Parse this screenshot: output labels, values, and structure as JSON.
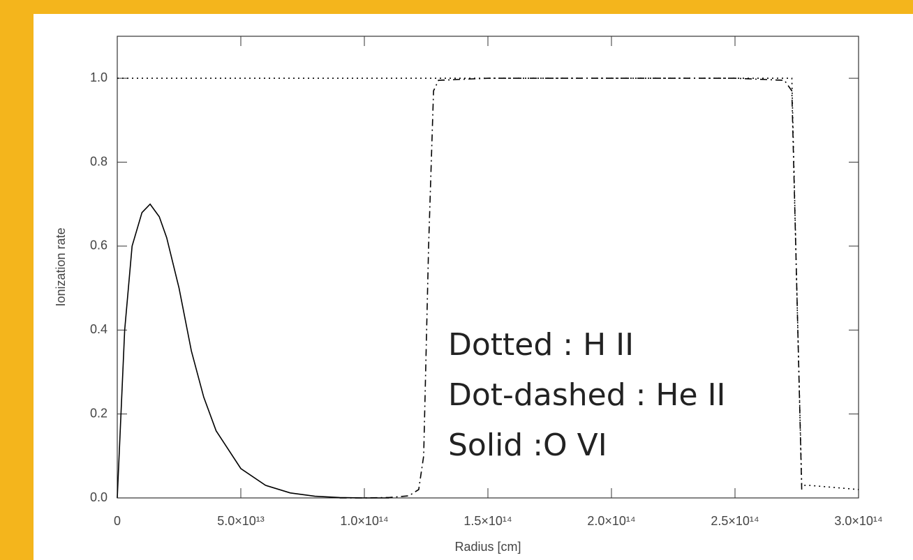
{
  "chart_data": {
    "type": "line",
    "xlabel": "Radius [cm]",
    "ylabel": "Ionization rate",
    "x": [
      0,
      3000000000000.0,
      6000000000000.0,
      10000000000000.0,
      13300000000000.0,
      17000000000000.0,
      20000000000000.0,
      25000000000000.0,
      30000000000000.0,
      35000000000000.0,
      40000000000000.0,
      50000000000000.0,
      60000000000000.0,
      70000000000000.0,
      80000000000000.0,
      90000000000000.0,
      100000000000000.0,
      110000000000000.0,
      118000000000000.0,
      122000000000000.0,
      124000000000000.0,
      126000000000000.0,
      128000000000000.0,
      130000000000000.0,
      150000000000000.0,
      200000000000000.0,
      250000000000000.0,
      270000000000000.0,
      273000000000000.0,
      275000000000000.0,
      277000000000000.0,
      280000000000000.0,
      290000000000000.0,
      300000000000000.0
    ],
    "series": [
      {
        "name": "Dotted : H II",
        "color": "#000000",
        "dash": "dotted",
        "values": [
          1,
          1,
          1,
          1,
          1,
          1,
          1,
          1,
          1,
          1,
          1,
          1,
          1,
          1,
          1,
          1,
          1,
          1,
          1,
          1,
          1,
          1,
          1,
          1,
          1,
          1,
          1,
          1,
          1,
          0.5,
          0.03,
          0.03,
          0.025,
          0.02
        ]
      },
      {
        "name": "Dot-dashed : He II",
        "color": "#000000",
        "dash": "dot-dashed",
        "values": [
          null,
          null,
          null,
          null,
          null,
          null,
          null,
          null,
          null,
          null,
          null,
          null,
          null,
          null,
          null,
          0,
          0,
          0.001,
          0.005,
          0.02,
          0.1,
          0.6,
          0.97,
          0.995,
          1,
          1,
          1,
          0.995,
          0.97,
          0.5,
          0.02,
          null,
          null,
          null
        ]
      },
      {
        "name": "Solid :O VI",
        "color": "#000000",
        "dash": "solid",
        "values": [
          0,
          0.4,
          0.6,
          0.68,
          0.7,
          0.67,
          0.62,
          0.5,
          0.35,
          0.24,
          0.16,
          0.07,
          0.03,
          0.012,
          0.004,
          0.001,
          0,
          0,
          null,
          null,
          null,
          null,
          null,
          null,
          null,
          null,
          null,
          null,
          null,
          null,
          null,
          null,
          null,
          null
        ]
      }
    ],
    "xlim": [
      0,
      300000000000000.0
    ],
    "ylim": [
      0,
      1.1
    ],
    "xticks": [
      0,
      {
        "value": 50000000000000.0,
        "label": "5.0×10¹³"
      },
      {
        "value": 100000000000000.0,
        "label": "1.0×10¹⁴"
      },
      {
        "value": 150000000000000.0,
        "label": "1.5×10¹⁴"
      },
      {
        "value": 200000000000000.0,
        "label": "2.0×10¹⁴"
      },
      {
        "value": 250000000000000.0,
        "label": "2.5×10¹⁴"
      },
      {
        "value": 300000000000000.0,
        "label": "3.0×10¹⁴"
      }
    ],
    "yticks": [
      {
        "value": 0,
        "label": "0.0"
      },
      0.2,
      0.4,
      0.6,
      0.8,
      {
        "value": 1,
        "label": "1.0"
      }
    ],
    "grid": false
  }
}
